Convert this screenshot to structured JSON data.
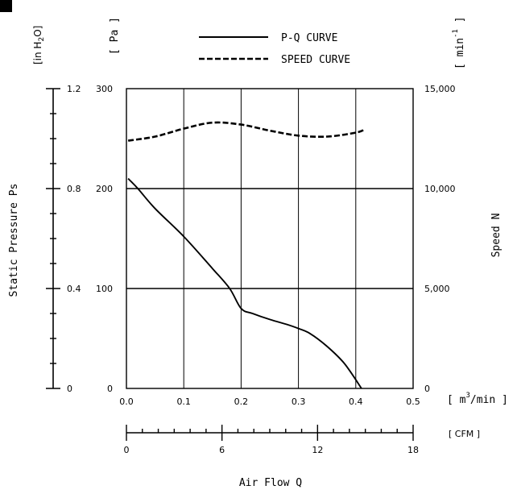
{
  "chart_data": {
    "type": "line",
    "title": "",
    "legend": {
      "placement": "top",
      "entries": [
        "P-Q CURVE",
        "SPEED CURVE"
      ]
    },
    "x": {
      "label": "Air Flow Q",
      "unit": "[ m3/min ]",
      "unit_base": "[ m",
      "unit_sup": "3",
      "unit_tail": "/min ]",
      "range": [
        0.0,
        0.5
      ],
      "ticks": [
        "0.0",
        "0.1",
        "0.2",
        "0.3",
        "0.4",
        "0.5"
      ],
      "secondary": {
        "unit": "[ CFM ]",
        "range": [
          0,
          18
        ],
        "ticks": [
          "0",
          "6",
          "12",
          "18"
        ]
      }
    },
    "y_left": {
      "label": "Static Pressure Ps",
      "unit": "[ Pa ]",
      "range": [
        0,
        300
      ],
      "ticks": [
        "0",
        "100",
        "200",
        "300"
      ],
      "secondary": {
        "unit": "[in H2O]",
        "unit_base": "[in H",
        "unit_sub": "2",
        "unit_tail": "O]",
        "range": [
          0,
          1.2
        ],
        "ticks": [
          "0",
          "0.4",
          "0.8",
          "1.2"
        ]
      }
    },
    "y_right": {
      "label": "Speed N",
      "unit": "[ min-1 ]",
      "unit_base": "[ min",
      "unit_sup": "-1",
      "unit_tail": " ]",
      "range": [
        0,
        15000
      ],
      "ticks": [
        "0",
        "5,000",
        "10,000",
        "15,000"
      ]
    },
    "grid": true,
    "series": [
      {
        "name": "P-Q CURVE",
        "axis": "left",
        "style": "solid",
        "color": "#000000",
        "x": [
          0.003,
          0.02,
          0.05,
          0.1,
          0.15,
          0.18,
          0.2,
          0.22,
          0.25,
          0.28,
          0.3,
          0.32,
          0.35,
          0.38,
          0.41
        ],
        "y": [
          210,
          200,
          180,
          152,
          120,
          100,
          80,
          75,
          69,
          64,
          60,
          55,
          42,
          25,
          0
        ]
      },
      {
        "name": "SPEED CURVE",
        "axis": "right",
        "style": "dashed",
        "color": "#000000",
        "x": [
          0.003,
          0.05,
          0.1,
          0.15,
          0.2,
          0.25,
          0.3,
          0.35,
          0.4,
          0.415
        ],
        "y": [
          12400,
          12600,
          13000,
          13300,
          13200,
          12900,
          12650,
          12600,
          12800,
          12950
        ]
      }
    ]
  }
}
